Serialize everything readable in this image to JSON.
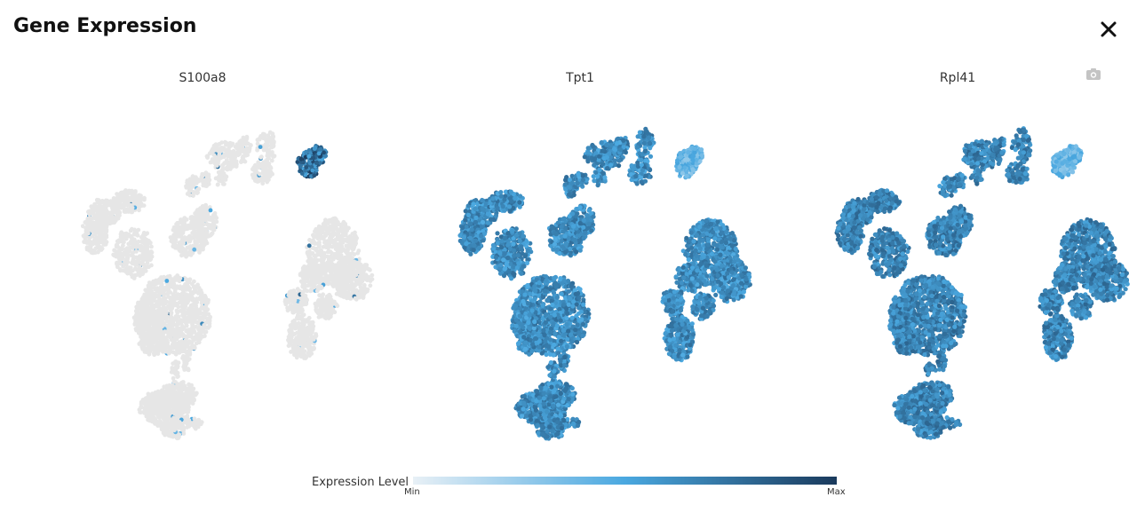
{
  "modal": {
    "title": "Gene Expression",
    "close_icon": "close-icon",
    "camera_icon": "camera-icon"
  },
  "legend": {
    "label": "Expression Level",
    "min_label": "Min",
    "max_label": "Max",
    "colors": [
      "#e8f0f6",
      "#4aa8e0",
      "#1a3a5c"
    ]
  },
  "chart_data": [
    {
      "type": "scatter",
      "title": "S100a8",
      "gene": "S100a8",
      "base_level": 0.0,
      "background_color": "#e6e6e6",
      "notes": "Nearly all cells at minimum (grey); highest expression in the small top-right cluster"
    },
    {
      "type": "scatter",
      "title": "Tpt1",
      "gene": "Tpt1",
      "base_level": 0.62,
      "background_color": "#e6e6e6",
      "notes": "Broadly high expression across all clusters"
    },
    {
      "type": "scatter",
      "title": "Rpl41",
      "gene": "Rpl41",
      "base_level": 0.66,
      "background_color": "#e6e6e6",
      "notes": "Broadly high expression across all clusters"
    }
  ]
}
